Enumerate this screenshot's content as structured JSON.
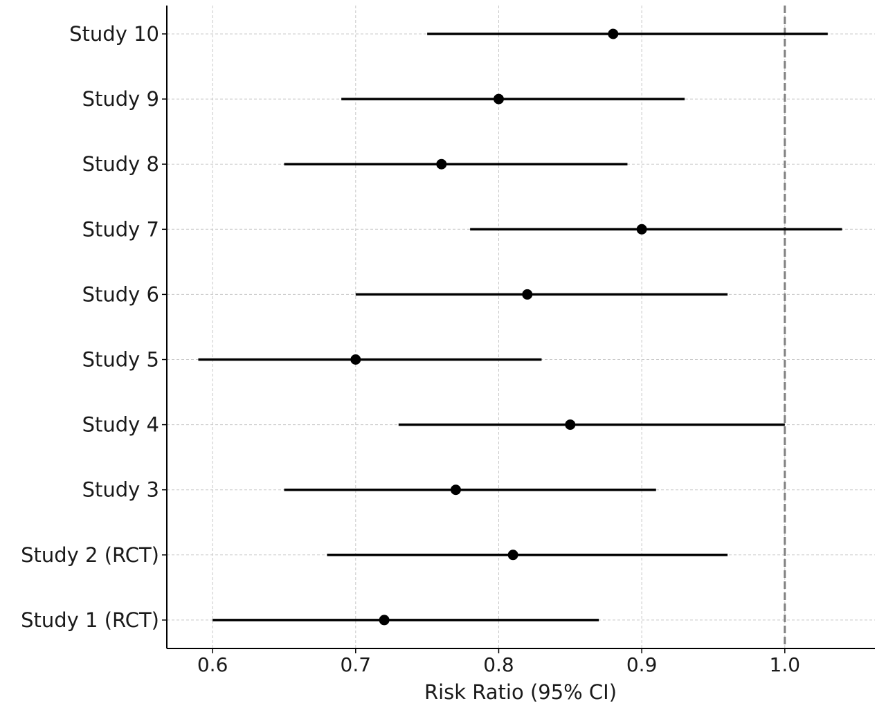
{
  "chart_data": {
    "type": "forest",
    "xlabel": "Risk Ratio (95% CI)",
    "ylabel": "",
    "xlim": [
      0.568,
      1.063
    ],
    "x_ticks": [
      0.6,
      0.7,
      0.8,
      0.9,
      1.0
    ],
    "x_tick_labels": [
      "0.6",
      "0.7",
      "0.8",
      "0.9",
      "1.0"
    ],
    "grid": true,
    "grid_style": "dashed",
    "reference_line": {
      "x": 1.0,
      "style": "dashed",
      "color": "#808080"
    },
    "studies": [
      {
        "label": "Study 10",
        "estimate": 0.88,
        "ci_lower": 0.75,
        "ci_upper": 1.03
      },
      {
        "label": "Study 9",
        "estimate": 0.8,
        "ci_lower": 0.69,
        "ci_upper": 0.93
      },
      {
        "label": "Study 8",
        "estimate": 0.76,
        "ci_lower": 0.65,
        "ci_upper": 0.89
      },
      {
        "label": "Study 7",
        "estimate": 0.9,
        "ci_lower": 0.78,
        "ci_upper": 1.04
      },
      {
        "label": "Study 6",
        "estimate": 0.82,
        "ci_lower": 0.7,
        "ci_upper": 0.96
      },
      {
        "label": "Study 5",
        "estimate": 0.7,
        "ci_lower": 0.59,
        "ci_upper": 0.83
      },
      {
        "label": "Study 4",
        "estimate": 0.85,
        "ci_lower": 0.73,
        "ci_upper": 1.0
      },
      {
        "label": "Study 3",
        "estimate": 0.77,
        "ci_lower": 0.65,
        "ci_upper": 0.91
      },
      {
        "label": "Study 2 (RCT)",
        "estimate": 0.81,
        "ci_lower": 0.68,
        "ci_upper": 0.96
      },
      {
        "label": "Study 1 (RCT)",
        "estimate": 0.72,
        "ci_lower": 0.6,
        "ci_upper": 0.87
      }
    ],
    "colors": {
      "marks": "#000000",
      "grid": "#c8c8c8",
      "reference": "#808080",
      "axis": "#000000"
    }
  }
}
